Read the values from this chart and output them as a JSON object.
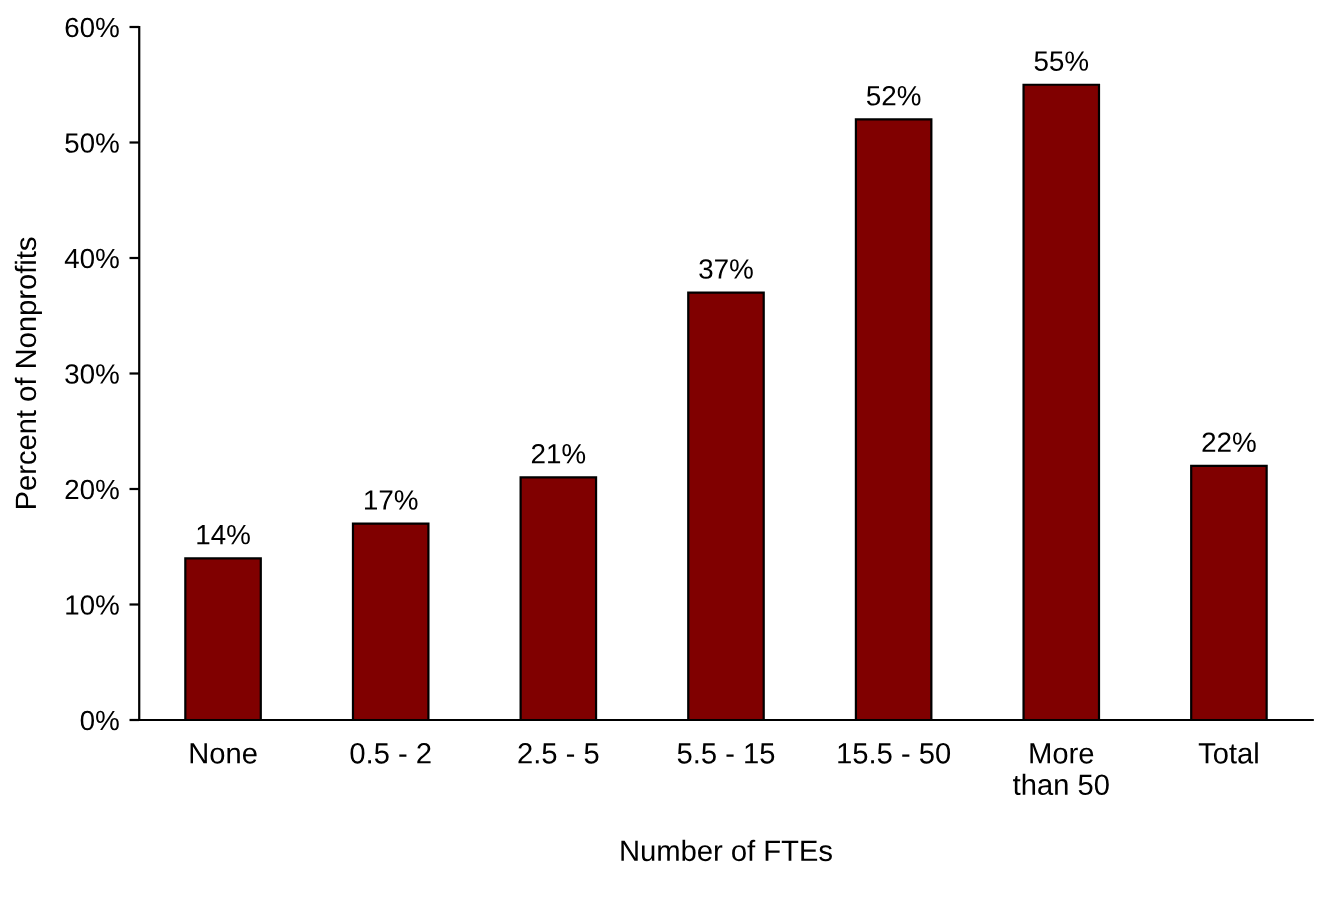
{
  "chart_data": {
    "type": "bar",
    "xlabel": "Number of FTEs",
    "ylabel": "Percent of Nonprofits",
    "categories": [
      "None",
      "0.5 - 2",
      "2.5 - 5",
      "5.5 - 15",
      "15.5 - 50",
      "More\nthan 50",
      "Total"
    ],
    "values": [
      14,
      17,
      21,
      37,
      52,
      55,
      22
    ],
    "value_labels": [
      "14%",
      "17%",
      "21%",
      "37%",
      "52%",
      "55%",
      "22%"
    ],
    "color": "#800000",
    "ylim": [
      0,
      60
    ],
    "yticks": [
      {
        "value": 0,
        "label": "0%"
      },
      {
        "value": 10,
        "label": "10%"
      },
      {
        "value": 20,
        "label": "20%"
      },
      {
        "value": 30,
        "label": "30%"
      },
      {
        "value": 40,
        "label": "40%"
      },
      {
        "value": 50,
        "label": "50%"
      },
      {
        "value": 60,
        "label": "60%"
      }
    ],
    "grid": false,
    "legend": false
  }
}
